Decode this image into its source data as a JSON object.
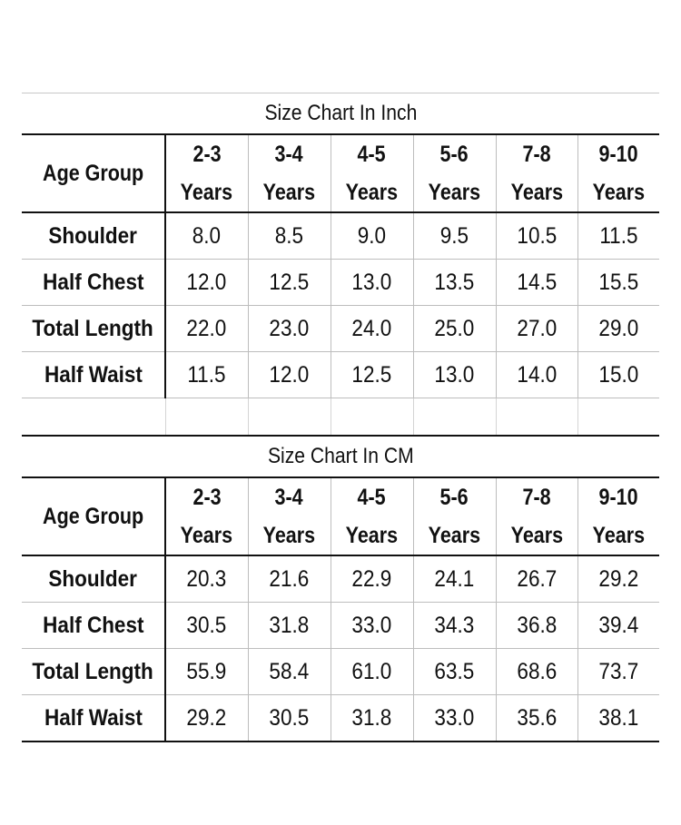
{
  "inch": {
    "title": "Size Chart In Inch",
    "age_group_label": "Age Group",
    "ages": [
      {
        "range": "2-3",
        "unit": "Years"
      },
      {
        "range": "3-4",
        "unit": "Years"
      },
      {
        "range": "4-5",
        "unit": "Years"
      },
      {
        "range": "5-6",
        "unit": "Years"
      },
      {
        "range": "7-8",
        "unit": "Years"
      },
      {
        "range": "9-10",
        "unit": "Years"
      }
    ],
    "rows": [
      {
        "label": "Shoulder",
        "values": [
          "8.0",
          "8.5",
          "9.0",
          "9.5",
          "10.5",
          "11.5"
        ]
      },
      {
        "label": "Half Chest",
        "values": [
          "12.0",
          "12.5",
          "13.0",
          "13.5",
          "14.5",
          "15.5"
        ]
      },
      {
        "label": "Total Length",
        "values": [
          "22.0",
          "23.0",
          "24.0",
          "25.0",
          "27.0",
          "29.0"
        ]
      },
      {
        "label": "Half Waist",
        "values": [
          "11.5",
          "12.0",
          "12.5",
          "13.0",
          "14.0",
          "15.0"
        ]
      }
    ]
  },
  "cm": {
    "title": "Size Chart In CM",
    "age_group_label": "Age Group",
    "ages": [
      {
        "range": "2-3",
        "unit": "Years"
      },
      {
        "range": "3-4",
        "unit": "Years"
      },
      {
        "range": "4-5",
        "unit": "Years"
      },
      {
        "range": "5-6",
        "unit": "Years"
      },
      {
        "range": "7-8",
        "unit": "Years"
      },
      {
        "range": "9-10",
        "unit": "Years"
      }
    ],
    "rows": [
      {
        "label": "Shoulder",
        "values": [
          "20.3",
          "21.6",
          "22.9",
          "24.1",
          "26.7",
          "29.2"
        ]
      },
      {
        "label": "Half Chest",
        "values": [
          "30.5",
          "31.8",
          "33.0",
          "34.3",
          "36.8",
          "39.4"
        ]
      },
      {
        "label": "Total Length",
        "values": [
          "55.9",
          "58.4",
          "61.0",
          "63.5",
          "68.6",
          "73.7"
        ]
      },
      {
        "label": "Half Waist",
        "values": [
          "29.2",
          "30.5",
          "31.8",
          "33.0",
          "35.6",
          "38.1"
        ]
      }
    ]
  }
}
